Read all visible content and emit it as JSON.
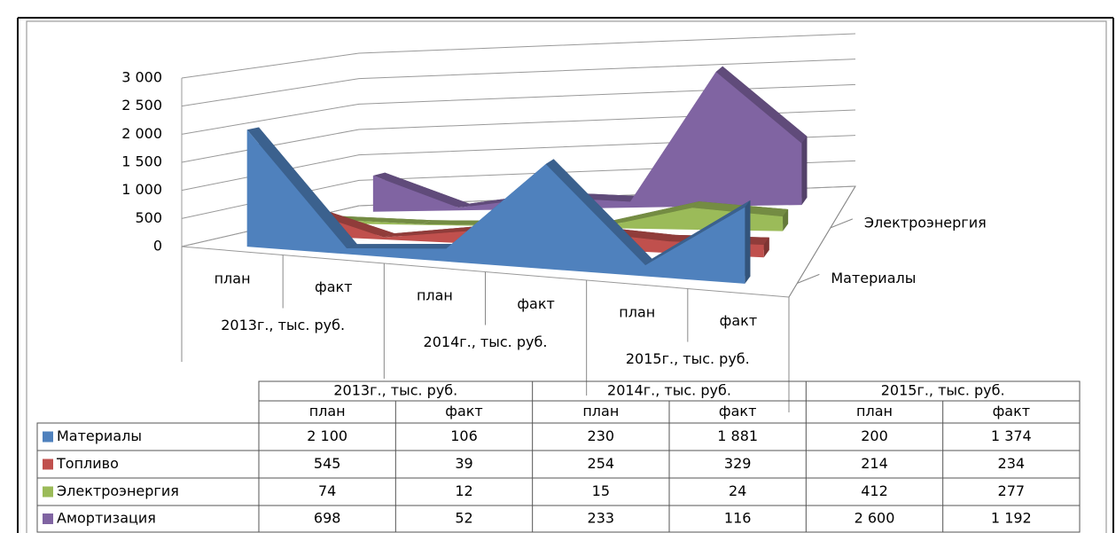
{
  "chart_data": {
    "type": "area3d",
    "categories": [
      "план",
      "факт",
      "план",
      "факт",
      "план",
      "факт"
    ],
    "groups": [
      "2013г., тыс. руб.",
      "2014г., тыс. руб.",
      "2015г., тыс. руб."
    ],
    "ylim": [
      0,
      3000
    ],
    "yticks": [
      0,
      500,
      {
        "value": 1000,
        "label": "1 000"
      },
      {
        "value": 1500,
        "label": "1 500"
      },
      {
        "value": 2000,
        "label": "2 000"
      },
      {
        "value": 2500,
        "label": "2 500"
      },
      {
        "value": 3000,
        "label": "3 000"
      }
    ],
    "grid": true,
    "series": [
      {
        "name": "Материалы",
        "color": "#4f81bd",
        "values": [
          2100,
          106,
          230,
          1881,
          200,
          1374
        ],
        "value_labels": [
          "2 100",
          "106",
          "230",
          "1 881",
          "200",
          "1 374"
        ]
      },
      {
        "name": "Топливо",
        "color": "#c0504d",
        "values": [
          545,
          39,
          254,
          329,
          214,
          234
        ],
        "value_labels": [
          "545",
          "39",
          "254",
          "329",
          "214",
          "234"
        ]
      },
      {
        "name": "Электроэнергия",
        "color": "#9bbb59",
        "values": [
          74,
          12,
          15,
          24,
          412,
          277
        ],
        "value_labels": [
          "74",
          "12",
          "15",
          "24",
          "412",
          "277"
        ]
      },
      {
        "name": "Амортизация",
        "color": "#8064a2",
        "values": [
          698,
          52,
          233,
          116,
          2600,
          1192
        ],
        "value_labels": [
          "698",
          "52",
          "233",
          "116",
          "2 600",
          "1 192"
        ]
      }
    ]
  }
}
